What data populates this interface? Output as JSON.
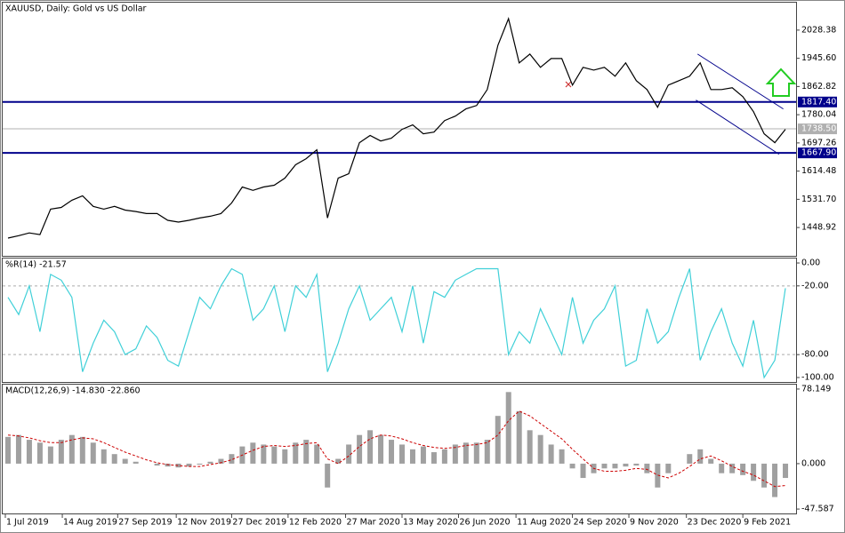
{
  "chart_data": [
    {
      "type": "price",
      "title": "XAUUSD, Daily:  Gold vs US Dollar",
      "color": "#000000",
      "values": [
        1418,
        1425,
        1433,
        1428,
        1503,
        1508,
        1529,
        1542,
        1511,
        1503,
        1511,
        1500,
        1496,
        1490,
        1490,
        1470,
        1465,
        1470,
        1477,
        1482,
        1490,
        1521,
        1568,
        1558,
        1568,
        1573,
        1594,
        1633,
        1651,
        1677,
        1477,
        1594,
        1607,
        1698,
        1719,
        1703,
        1711,
        1737,
        1750,
        1724,
        1729,
        1763,
        1776,
        1797,
        1807,
        1854,
        1984,
        2062,
        1932,
        1958,
        1919,
        1945,
        1945,
        1867,
        1919,
        1911,
        1919,
        1893,
        1932,
        1880,
        1854,
        1802,
        1867,
        1880,
        1893,
        1932,
        1854,
        1854,
        1859,
        1833,
        1789,
        1724,
        1698,
        1737
      ],
      "ylim": [
        1365.8,
        2108.9
      ],
      "yticks": [
        2028.38,
        {
          "value": 1945.6,
          "label": "1945.60"
        },
        1862.82,
        1780.04,
        1697.26,
        1614.48,
        {
          "value": 1531.7,
          "label": "1531.70"
        },
        1448.92
      ],
      "levels": [
        {
          "value": 1817.4,
          "label": "1817.40",
          "color": "#00008b"
        },
        {
          "value": 1667.9,
          "label": "1667.90",
          "color": "#00008b"
        }
      ],
      "current": {
        "value": 1738.5,
        "label": "1738.50",
        "color": "#b0b0b0"
      },
      "trendlines": [
        {
          "x": [
            64.75,
            72.8
          ],
          "y": [
            1958,
            1797
          ]
        },
        {
          "x": [
            64.6,
            72.4
          ],
          "y": [
            1823,
            1664
          ]
        }
      ]
    },
    {
      "type": "oscillator",
      "title": "%R(14) -21.57",
      "color": "#40d0d8",
      "values": [
        -30,
        -45,
        -20,
        -60,
        -10,
        -15,
        -30,
        -95,
        -70,
        -50,
        -60,
        -80,
        -75,
        -55,
        -65,
        -85,
        -90,
        -60,
        -30,
        -40,
        -20,
        -5,
        -10,
        -50,
        -40,
        -20,
        -60,
        -20,
        -30,
        -10,
        -95,
        -70,
        -40,
        -20,
        -50,
        -40,
        -30,
        -60,
        -20,
        -70,
        -25,
        -30,
        -15,
        -10,
        -5,
        -5,
        -5,
        -80,
        -60,
        -70,
        -40,
        -60,
        -80,
        -30,
        -70,
        -50,
        -40,
        -20,
        -90,
        -85,
        -40,
        -70,
        -60,
        -30,
        -5,
        -85,
        -60,
        -40,
        -70,
        -90,
        -50,
        -100,
        -85,
        -22
      ],
      "ylim": [
        -103.9,
        3.9
      ],
      "yticks": [
        {
          "value": 0,
          "label": "0.00"
        },
        {
          "value": -20,
          "label": "-20.00"
        },
        {
          "value": -80,
          "label": "-80.00"
        },
        {
          "value": -100,
          "label": "-100.00"
        }
      ],
      "levels": [
        -20,
        -80
      ]
    },
    {
      "type": "macd",
      "title": "MACD(12,26,9) -14.830 -22.860",
      "color": "#a0a0a0",
      "signal_color": "#cc0000",
      "histogram": [
        28,
        30,
        25,
        22,
        18,
        25,
        30,
        28,
        22,
        15,
        10,
        5,
        2,
        0,
        -2,
        -3,
        -4,
        -3,
        -1,
        2,
        5,
        10,
        18,
        22,
        20,
        18,
        15,
        22,
        25,
        20,
        -25,
        5,
        20,
        30,
        35,
        30,
        25,
        20,
        15,
        18,
        12,
        15,
        20,
        22,
        22,
        25,
        50,
        75,
        55,
        35,
        30,
        20,
        15,
        -5,
        -15,
        -10,
        -5,
        -5,
        -3,
        -2,
        -10,
        -25,
        -10,
        0,
        10,
        15,
        5,
        -10,
        -10,
        -12,
        -18,
        -25,
        -35,
        -15
      ],
      "signal": [
        30,
        29,
        27,
        24,
        22,
        22,
        25,
        27,
        26,
        22,
        17,
        12,
        8,
        4,
        1,
        -1,
        -2,
        -3,
        -3,
        -1,
        1,
        4,
        9,
        14,
        18,
        19,
        18,
        19,
        21,
        22,
        5,
        0,
        8,
        18,
        26,
        30,
        29,
        26,
        22,
        19,
        17,
        16,
        17,
        19,
        20,
        22,
        30,
        45,
        55,
        50,
        42,
        34,
        26,
        15,
        5,
        -5,
        -8,
        -8,
        -7,
        -5,
        -6,
        -12,
        -15,
        -10,
        -3,
        5,
        8,
        3,
        -3,
        -8,
        -12,
        -18,
        -24,
        -23
      ],
      "ylim": [
        -52.18,
        82.75
      ],
      "yticks": [
        78.149,
        {
          "value": 0,
          "label": "0.000"
        },
        -47.587
      ],
      "xlim": [
        -0.5,
        74
      ],
      "xticks": [
        {
          "value": -0.25,
          "label": "1 Jul 2019"
        },
        {
          "value": 5.1,
          "label": "14 Aug 2019"
        },
        {
          "value": 10.3,
          "label": "27 Sep 2019"
        },
        {
          "value": 15.8,
          "label": "12 Nov 2019"
        },
        {
          "value": 21,
          "label": "27 Dec 2019"
        },
        {
          "value": 26.3,
          "label": "12 Feb 2020"
        },
        {
          "value": 31.7,
          "label": "27 Mar 2020"
        },
        {
          "value": 37,
          "label": "13 May 2020"
        },
        {
          "value": 42.3,
          "label": "26 Jun 2020"
        },
        {
          "value": 47.7,
          "label": "11 Aug 2020"
        },
        {
          "value": 53,
          "label": "24 Sep 2020"
        },
        {
          "value": 58.3,
          "label": "9 Nov 2020"
        },
        {
          "value": 63.7,
          "label": "23 Dec 2020"
        },
        {
          "value": 69,
          "label": "9 Feb 2021"
        }
      ]
    }
  ]
}
